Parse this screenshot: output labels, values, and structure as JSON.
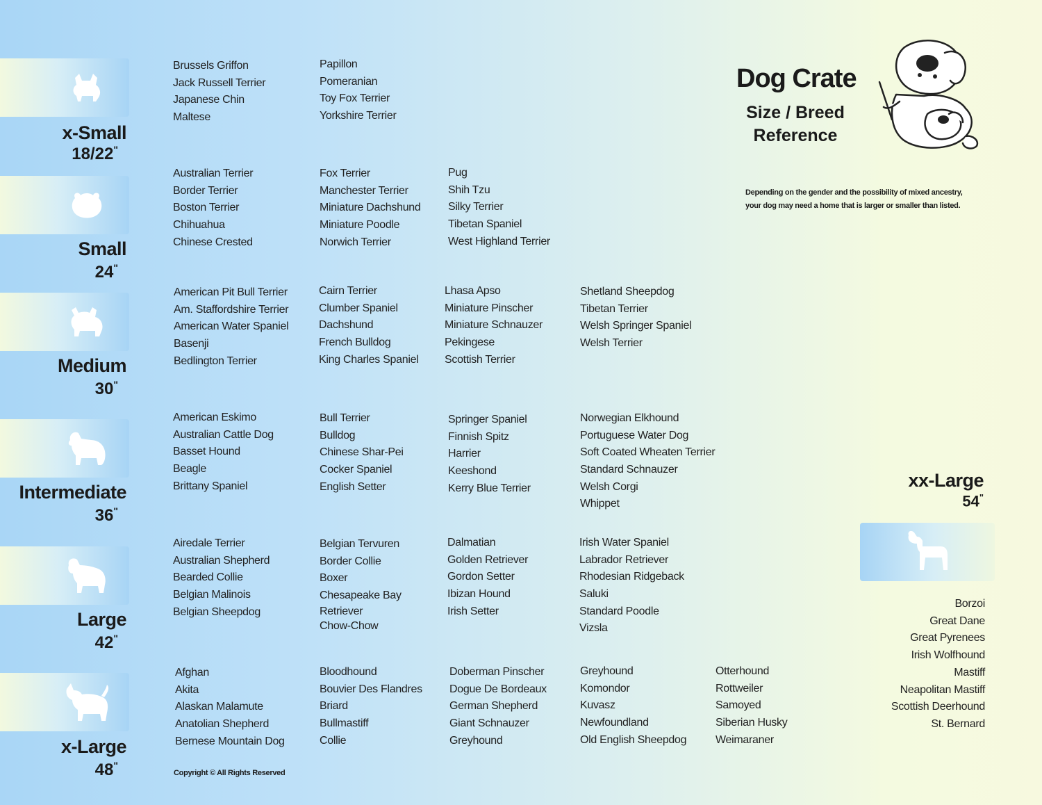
{
  "header": {
    "title": "Dog Crate",
    "subtitle_line1": "Size / Breed",
    "subtitle_line2": "Reference",
    "note_line1": "Depending on the gender and the possibility of mixed ancestry,",
    "note_line2": "your dog may need  a home that is larger or smaller than listed."
  },
  "sizes": [
    {
      "name": "x-Small",
      "dim": "18/22",
      "unit": "\"",
      "icon": "small-dog-silhouette-icon",
      "columns": [
        [
          "Brussels Griffon",
          "Jack Russell Terrier",
          "Japanese Chin",
          "Maltese"
        ],
        [
          "Papillon",
          "Pomeranian",
          "Toy Fox Terrier",
          "Yorkshire Terrier"
        ]
      ]
    },
    {
      "name": "Small",
      "dim": "24",
      "unit": "\"",
      "icon": "fluffy-dog-silhouette-icon",
      "columns": [
        [
          "Australian Terrier",
          "Border Terrier",
          "Boston Terrier",
          "Chihuahua",
          "Chinese Crested"
        ],
        [
          "Fox Terrier",
          "Manchester Terrier",
          "Miniature Dachshund",
          "Miniature Poodle",
          "Norwich Terrier"
        ],
        [
          "Pug",
          "Shih Tzu",
          "Silky Terrier",
          "Tibetan Spaniel",
          "West Highland Terrier"
        ]
      ]
    },
    {
      "name": "Medium",
      "dim": "30",
      "unit": "\"",
      "icon": "terrier-silhouette-icon",
      "columns": [
        [
          "American Pit Bull Terrier",
          "Am. Staffordshire Terrier",
          "American Water Spaniel",
          "Basenji",
          "Bedlington Terrier"
        ],
        [
          "Cairn Terrier",
          "Clumber Spaniel",
          "Dachshund",
          "French Bulldog",
          "King Charles Spaniel"
        ],
        [
          "Lhasa Apso",
          "Miniature Pinscher",
          "Miniature Schnauzer",
          "Pekingese",
          "Scottish Terrier"
        ],
        [
          "Shetland Sheepdog",
          "Tibetan Terrier",
          "Welsh Springer Spaniel",
          "Welsh Terrier"
        ]
      ]
    },
    {
      "name": "Intermediate",
      "dim": "36",
      "unit": "\"",
      "icon": "spaniel-silhouette-icon",
      "columns": [
        [
          "American Eskimo",
          "Australian Cattle Dog",
          "Basset Hound",
          "Beagle",
          "Brittany Spaniel"
        ],
        [
          "Bull Terrier",
          "Bulldog",
          "Chinese Shar-Pei",
          "Cocker Spaniel",
          "English Setter"
        ],
        [
          "Springer Spaniel",
          "Finnish Spitz",
          "Harrier",
          "Keeshond",
          "Kerry Blue Terrier"
        ],
        [
          "Norwegian Elkhound",
          "Portuguese Water Dog",
          "Soft Coated Wheaten Terrier",
          "Standard Schnauzer",
          "Welsh Corgi",
          "Whippet"
        ]
      ]
    },
    {
      "name": "Large",
      "dim": "42",
      "unit": "\"",
      "icon": "retriever-silhouette-icon",
      "columns": [
        [
          "Airedale Terrier",
          "Australian Shepherd",
          "Bearded Collie",
          "Belgian Malinois",
          "Belgian Sheepdog"
        ],
        [
          "Belgian Tervuren",
          "Border Collie",
          "Boxer",
          "Chesapeake Bay",
          "Retriever",
          "Chow-Chow"
        ],
        [
          "Dalmatian",
          "Golden Retriever",
          "Gordon Setter",
          "Ibizan Hound",
          "Irish Setter"
        ],
        [
          "Irish Water Spaniel",
          "Labrador Retriever",
          "Rhodesian Ridgeback",
          "Saluki",
          "Standard Poodle",
          "Vizsla"
        ]
      ]
    },
    {
      "name": "x-Large",
      "dim": "48",
      "unit": "\"",
      "icon": "husky-silhouette-icon",
      "columns": [
        [
          "Afghan",
          "Akita",
          "Alaskan Malamute",
          "Anatolian Shepherd",
          "Bernese Mountain Dog"
        ],
        [
          "Bloodhound",
          "Bouvier Des Flandres",
          "Briard",
          "Bullmastiff",
          "Collie"
        ],
        [
          "Doberman Pinscher",
          "Dogue De Bordeaux",
          "German Shepherd",
          "Giant Schnauzer",
          "Greyhound"
        ],
        [
          "Greyhound",
          "Komondor",
          "Kuvasz",
          "Newfoundland",
          "Old English Sheepdog"
        ],
        [
          "Otterhound",
          "Rottweiler",
          "Samoyed",
          "Siberian Husky",
          "Weimaraner"
        ]
      ]
    }
  ],
  "xxlarge": {
    "name": "xx-Large",
    "dim": "54",
    "unit": "\"",
    "icon": "great-dane-silhouette-icon",
    "breeds": [
      "Borzoi",
      "Great Dane",
      "Great Pyrenees",
      "Irish Wolfhound",
      "Mastiff",
      "Neapolitan Mastiff",
      "Scottish Deerhound",
      "St. Bernard"
    ]
  },
  "footer": {
    "copyright": "Copyright © All Rights Reserved"
  }
}
